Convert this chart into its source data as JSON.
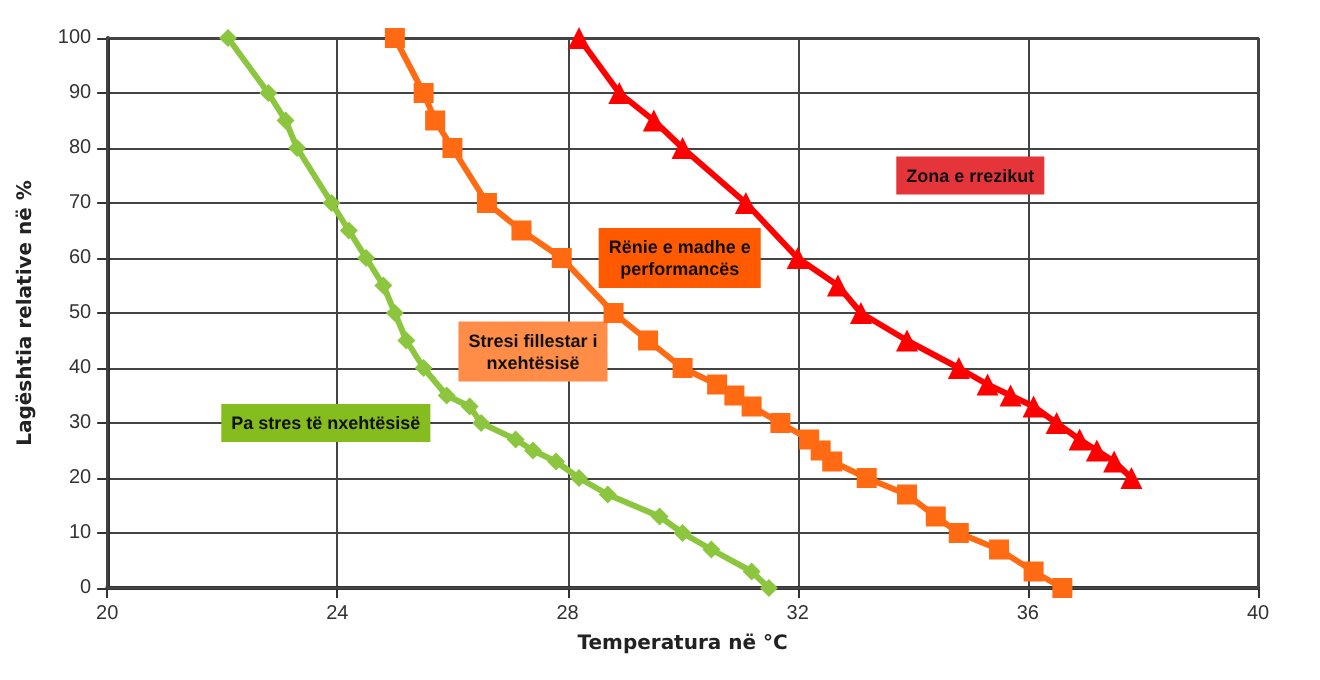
{
  "chart_data": {
    "type": "line",
    "xlabel": "Temperatura në °C",
    "ylabel": "Lagështia relative në %",
    "xlim": [
      20,
      40
    ],
    "xticks": [
      20,
      24,
      28,
      32,
      36,
      40
    ],
    "ylim": [
      0,
      100
    ],
    "yticks": [
      0,
      10,
      20,
      30,
      40,
      50,
      60,
      70,
      80,
      90,
      100
    ],
    "grid": true,
    "series": [
      {
        "color": "#8cc63f",
        "marker": "diamond",
        "x": [
          22.1,
          22.8,
          23.1,
          23.3,
          23.9,
          24.2,
          24.5,
          24.8,
          25.0,
          25.2,
          25.5,
          25.9,
          26.3,
          26.5,
          27.1,
          27.4,
          27.8,
          28.2,
          28.7,
          29.6,
          30.0,
          30.5,
          31.2,
          31.5
        ],
        "values": [
          100,
          90,
          85,
          80,
          70,
          65,
          60,
          55,
          50,
          45,
          40,
          35,
          33,
          30,
          27,
          25,
          23,
          20,
          17,
          13,
          10,
          7,
          3,
          0
        ]
      },
      {
        "color": "#ff6a13",
        "marker": "square",
        "x": [
          25.0,
          25.5,
          25.7,
          26.0,
          26.6,
          27.2,
          27.9,
          28.8,
          29.4,
          30.0,
          30.6,
          30.9,
          31.2,
          31.7,
          32.2,
          32.4,
          32.6,
          33.2,
          33.9,
          34.4,
          34.8,
          35.5,
          36.1,
          36.6
        ],
        "values": [
          100,
          90,
          85,
          80,
          70,
          65,
          60,
          50,
          45,
          40,
          37,
          35,
          33,
          30,
          27,
          25,
          23,
          20,
          17,
          13,
          10,
          7,
          3,
          0
        ]
      },
      {
        "color": "#ff0000",
        "marker": "triangle",
        "x": [
          28.2,
          28.9,
          29.5,
          30.0,
          31.1,
          32.0,
          32.7,
          33.1,
          33.9,
          34.8,
          35.3,
          35.7,
          36.1,
          36.5,
          36.9,
          37.2,
          37.5,
          37.8
        ],
        "values": [
          100,
          90,
          85,
          80,
          70,
          60,
          55,
          50,
          45,
          40,
          37,
          35,
          33,
          30,
          27,
          25,
          23,
          20
        ]
      }
    ],
    "annotations": [
      "Pa stres të nxehtësisë",
      "Stresi fillestar i\nnxehtësisë",
      "Rënie e madhe e\nperformancës",
      "Zona e rrezikut"
    ]
  }
}
